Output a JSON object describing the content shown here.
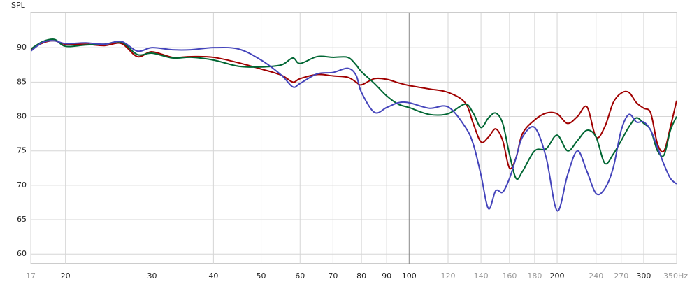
{
  "chart_data": {
    "type": "line",
    "y_label": "SPL",
    "x_scale": "log",
    "grid": true,
    "x": [
      17,
      18,
      19,
      20,
      22,
      24,
      26,
      28,
      30,
      33,
      36,
      40,
      45,
      50,
      55,
      58,
      60,
      65,
      70,
      75,
      78,
      80,
      85,
      90,
      95,
      100,
      110,
      120,
      130,
      135,
      140,
      145,
      150,
      155,
      160,
      165,
      170,
      180,
      190,
      200,
      210,
      220,
      230,
      240,
      250,
      260,
      270,
      280,
      290,
      300,
      310,
      320,
      330,
      340,
      350
    ],
    "series": [
      {
        "color": "#a00000",
        "values": [
          89.7,
          90.7,
          91.0,
          90.5,
          90.5,
          90.3,
          90.6,
          88.7,
          89.4,
          88.6,
          88.7,
          88.6,
          87.8,
          86.9,
          86.0,
          85.0,
          85.5,
          86.1,
          85.9,
          85.7,
          85.0,
          84.6,
          85.5,
          85.4,
          84.9,
          84.5,
          84.0,
          83.5,
          82.0,
          79.0,
          76.3,
          77.0,
          78.2,
          76.5,
          72.5,
          74.0,
          77.5,
          79.5,
          80.5,
          80.4,
          79.0,
          80.0,
          81.4,
          77.0,
          78.5,
          82.0,
          83.4,
          83.5,
          82.0,
          81.2,
          80.5,
          76.0,
          75.0,
          78.5,
          82.3
        ]
      },
      {
        "color": "#006633",
        "values": [
          89.8,
          90.9,
          91.2,
          90.2,
          90.4,
          90.5,
          90.8,
          89.0,
          89.2,
          88.5,
          88.6,
          88.2,
          87.3,
          87.2,
          87.5,
          88.5,
          87.7,
          88.7,
          88.6,
          88.6,
          87.5,
          86.5,
          84.8,
          83.0,
          81.8,
          81.3,
          80.3,
          80.4,
          81.8,
          80.5,
          78.4,
          79.8,
          80.5,
          79.0,
          74.5,
          71.0,
          72.0,
          75.0,
          75.3,
          77.3,
          75.0,
          76.5,
          78.0,
          77.0,
          73.2,
          74.5,
          76.5,
          78.5,
          79.8,
          79.0,
          78.0,
          75.0,
          74.4,
          78.0,
          80.0
        ]
      },
      {
        "color": "#4444bb",
        "values": [
          89.5,
          90.8,
          91.0,
          90.6,
          90.7,
          90.5,
          90.9,
          89.5,
          90.0,
          89.7,
          89.7,
          90.0,
          89.8,
          88.2,
          86.0,
          84.3,
          84.8,
          86.2,
          86.4,
          87.0,
          86.0,
          83.5,
          80.6,
          81.3,
          82.0,
          82.0,
          81.2,
          81.4,
          78.5,
          76.0,
          71.5,
          66.6,
          69.2,
          69.0,
          71.0,
          74.0,
          77.0,
          78.4,
          74.0,
          66.3,
          71.5,
          75.0,
          72.0,
          68.8,
          69.5,
          72.5,
          78.0,
          80.3,
          79.2,
          79.2,
          78.0,
          75.5,
          73.0,
          71.0,
          70.2
        ]
      }
    ],
    "xlim": [
      17,
      350
    ],
    "ylim": [
      58.6,
      95.1
    ],
    "xticks": [
      17,
      20,
      30,
      40,
      50,
      60,
      70,
      80,
      90,
      100,
      120,
      140,
      160,
      180,
      200,
      240,
      270,
      300,
      {
        "value": 350,
        "label": "350Hz"
      }
    ],
    "yticks": [
      60,
      65,
      70,
      75,
      80,
      85,
      90
    ]
  }
}
